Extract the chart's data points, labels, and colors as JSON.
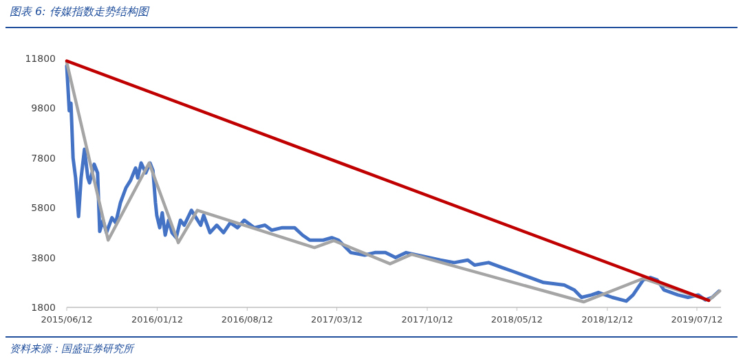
{
  "chart_data": {
    "type": "line",
    "title": "图表 6:  传媒指数走势结构图",
    "annotations": [
      "资料来源：国盛证券研究所"
    ],
    "xlim": [
      "2015-06-12",
      "2019-09-07"
    ],
    "ylim": [
      1800,
      11800
    ],
    "xticks": [
      {
        "value": "2015-06-12",
        "label": "2015/06/12"
      },
      {
        "value": "2016-01-12",
        "label": "2016/01/12"
      },
      {
        "value": "2016-08-12",
        "label": "2016/08/12"
      },
      {
        "value": "2017-03-12",
        "label": "2017/03/12"
      },
      {
        "value": "2017-10-12",
        "label": "2017/10/12"
      },
      {
        "value": "2018-05-12",
        "label": "2018/05/12"
      },
      {
        "value": "2018-12-12",
        "label": "2018/12/12"
      },
      {
        "value": "2019-07-12",
        "label": "2019/07/12"
      }
    ],
    "yticks": [
      1800,
      3800,
      5800,
      7800,
      9800,
      11800
    ],
    "grid": false,
    "marker": "none",
    "line_style": "solid",
    "series": [
      {
        "color": "#4472c4",
        "x": [
          "2015-06-12",
          "2015-06-18",
          "2015-06-22",
          "2015-06-27",
          "2015-07-03",
          "2015-07-10",
          "2015-07-16",
          "2015-07-24",
          "2015-08-01",
          "2015-08-05",
          "2015-08-16",
          "2015-08-24",
          "2015-08-29",
          "2015-09-06",
          "2015-09-14",
          "2015-09-27",
          "2015-10-06",
          "2015-10-17",
          "2015-10-30",
          "2015-11-10",
          "2015-11-22",
          "2015-11-27",
          "2015-12-05",
          "2015-12-16",
          "2015-12-26",
          "2016-01-02",
          "2016-01-08",
          "2016-01-11",
          "2016-01-18",
          "2016-01-24",
          "2016-01-31",
          "2016-02-08",
          "2016-02-16",
          "2016-02-26",
          "2016-03-07",
          "2016-03-16",
          "2016-04-02",
          "2016-04-13",
          "2016-04-24",
          "2016-05-01",
          "2016-05-16",
          "2016-06-01",
          "2016-06-17",
          "2016-07-03",
          "2016-07-20",
          "2016-08-05",
          "2016-08-29",
          "2016-09-23",
          "2016-10-09",
          "2016-11-03",
          "2016-12-02",
          "2016-12-21",
          "2017-01-07",
          "2017-02-08",
          "2017-02-28",
          "2017-03-16",
          "2017-04-14",
          "2017-05-17",
          "2017-06-10",
          "2017-07-05",
          "2017-07-29",
          "2017-08-23",
          "2017-10-02",
          "2017-11-12",
          "2017-12-15",
          "2018-01-16",
          "2018-02-01",
          "2018-03-06",
          "2018-04-07",
          "2018-05-02",
          "2018-06-12",
          "2018-07-14",
          "2018-09-01",
          "2018-09-25",
          "2018-10-12",
          "2018-11-05",
          "2018-11-21",
          "2018-12-24",
          "2019-01-26",
          "2019-02-11",
          "2019-03-07",
          "2019-03-24",
          "2019-04-09",
          "2019-04-25",
          "2019-05-28",
          "2019-06-21",
          "2019-07-15",
          "2019-08-01",
          "2019-08-17",
          "2019-09-02"
        ],
        "values": [
          11500,
          9700,
          10000,
          7800,
          7000,
          5450,
          7000,
          8150,
          7000,
          6800,
          7550,
          7200,
          4850,
          5300,
          4800,
          5400,
          5200,
          6000,
          6600,
          6900,
          7400,
          7000,
          7600,
          7200,
          7600,
          7300,
          6000,
          5500,
          5000,
          5600,
          4700,
          5300,
          4800,
          4600,
          5300,
          5100,
          5700,
          5400,
          5100,
          5500,
          4800,
          5100,
          4800,
          5200,
          5000,
          5300,
          5000,
          5100,
          4900,
          5000,
          5000,
          4700,
          4500,
          4500,
          4600,
          4500,
          4000,
          3900,
          4000,
          4000,
          3800,
          4000,
          3850,
          3700,
          3600,
          3700,
          3500,
          3600,
          3400,
          3250,
          3000,
          2800,
          2700,
          2500,
          2200,
          2300,
          2400,
          2200,
          2050,
          2300,
          2900,
          3000,
          2900,
          2500,
          2300,
          2200,
          2300,
          2100,
          2200,
          2450
        ]
      },
      {
        "color": "#a5a5a5",
        "x": [
          "2015-06-12",
          "2015-09-18",
          "2015-12-24",
          "2016-03-02",
          "2016-04-16",
          "2017-01-18",
          "2017-03-05",
          "2017-07-16",
          "2017-09-05",
          "2018-10-17",
          "2019-03-07",
          "2019-08-09",
          "2019-09-04"
        ],
        "values": [
          11650,
          4500,
          7600,
          4400,
          5700,
          4200,
          4480,
          3550,
          3930,
          2020,
          2960,
          2080,
          2460
        ]
      },
      {
        "color": "#c00000",
        "x": [
          "2015-06-12",
          "2019-08-09"
        ],
        "values": [
          11700,
          2080
        ]
      }
    ]
  }
}
